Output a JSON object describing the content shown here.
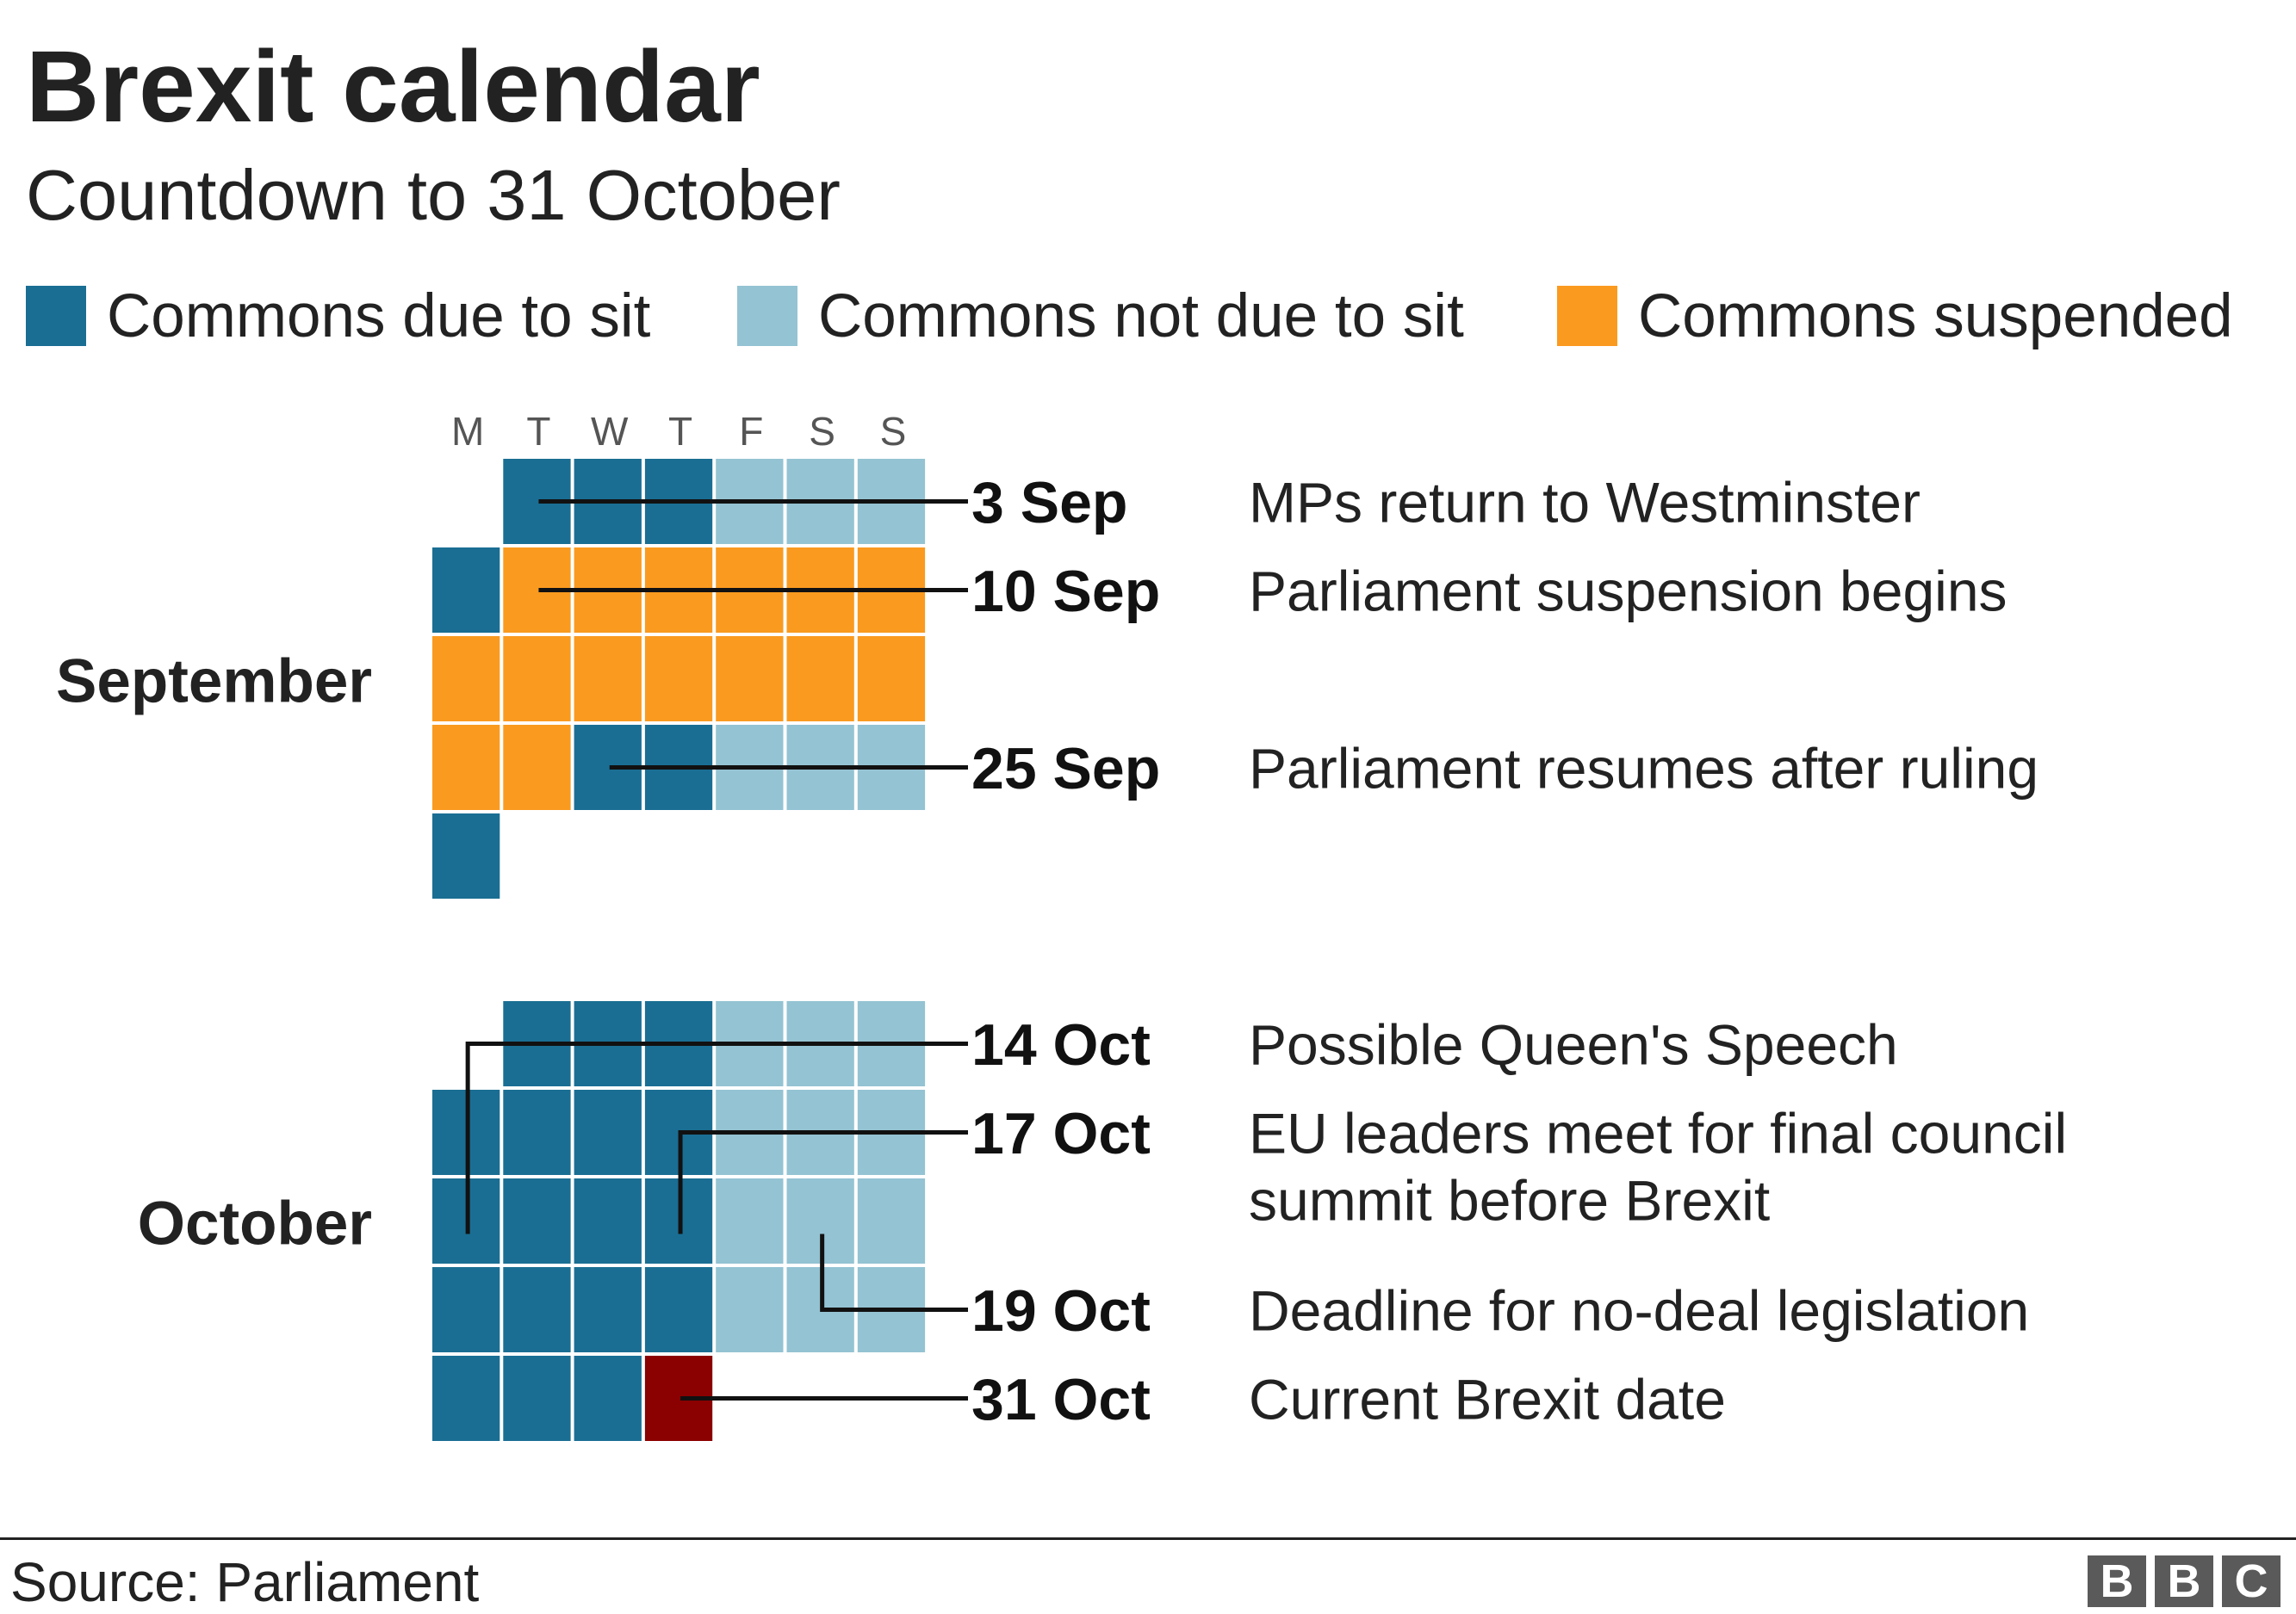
{
  "header": {
    "title": "Brexit calendar",
    "subtitle": "Countdown to 31 October"
  },
  "legend": [
    {
      "label": "Commons due to sit",
      "color": "#1a6e93"
    },
    {
      "label": "Commons not due to sit",
      "color": "#94c3d3"
    },
    {
      "label": "Commons suspended",
      "color": "#fa9a1f"
    }
  ],
  "footer": {
    "source": "Source: Parliament",
    "logo_letters": [
      "B",
      "B",
      "C"
    ]
  },
  "chart_data": {
    "type": "heatmap",
    "title": "Brexit calendar",
    "subtitle": "Countdown to 31 October",
    "weekdays": [
      "M",
      "T",
      "W",
      "T",
      "F",
      "S",
      "S"
    ],
    "colors": {
      "sit": "#1a6e93",
      "not_sit": "#94c3d3",
      "suspended": "#fa9a1f",
      "brexit": "#8b0000"
    },
    "months": [
      {
        "label": "September",
        "rows": [
          [
            null,
            "sit",
            "sit",
            "sit",
            "not_sit",
            "not_sit",
            "not_sit"
          ],
          [
            "sit",
            "suspended",
            "suspended",
            "suspended",
            "suspended",
            "suspended",
            "suspended"
          ],
          [
            "suspended",
            "suspended",
            "suspended",
            "suspended",
            "suspended",
            "suspended",
            "suspended"
          ],
          [
            "suspended",
            "suspended",
            "sit",
            "sit",
            "not_sit",
            "not_sit",
            "not_sit"
          ],
          [
            "sit",
            null,
            null,
            null,
            null,
            null,
            null
          ]
        ],
        "annotations": [
          {
            "date": "3 Sep",
            "text": [
              "MPs return to Westminster"
            ],
            "row": 0,
            "col": 1
          },
          {
            "date": "10 Sep",
            "text": [
              "Parliament suspension begins"
            ],
            "row": 1,
            "col": 1
          },
          {
            "date": "25 Sep",
            "text": [
              "Parliament resumes after ruling"
            ],
            "row": 3,
            "col": 2
          }
        ]
      },
      {
        "label": "October",
        "rows": [
          [
            null,
            "sit",
            "sit",
            "sit",
            "not_sit",
            "not_sit",
            "not_sit"
          ],
          [
            "sit",
            "sit",
            "sit",
            "sit",
            "not_sit",
            "not_sit",
            "not_sit"
          ],
          [
            "sit",
            "sit",
            "sit",
            "sit",
            "not_sit",
            "not_sit",
            "not_sit"
          ],
          [
            "sit",
            "sit",
            "sit",
            "sit",
            "not_sit",
            "not_sit",
            "not_sit"
          ],
          [
            "sit",
            "sit",
            "sit",
            "brexit",
            null,
            null,
            null
          ]
        ],
        "annotations": [
          {
            "date": "14 Oct",
            "text": [
              "Possible Queen's Speech"
            ],
            "row": 2,
            "col": 0
          },
          {
            "date": "17 Oct",
            "text": [
              "EU leaders meet for final council",
              "summit before Brexit"
            ],
            "row": 2,
            "col": 3
          },
          {
            "date": "19 Oct",
            "text": [
              "Deadline for no-deal legislation"
            ],
            "row": 2,
            "col": 5
          },
          {
            "date": "31 Oct",
            "text": [
              "Current Brexit date"
            ],
            "row": 4,
            "col": 3
          }
        ]
      }
    ]
  }
}
